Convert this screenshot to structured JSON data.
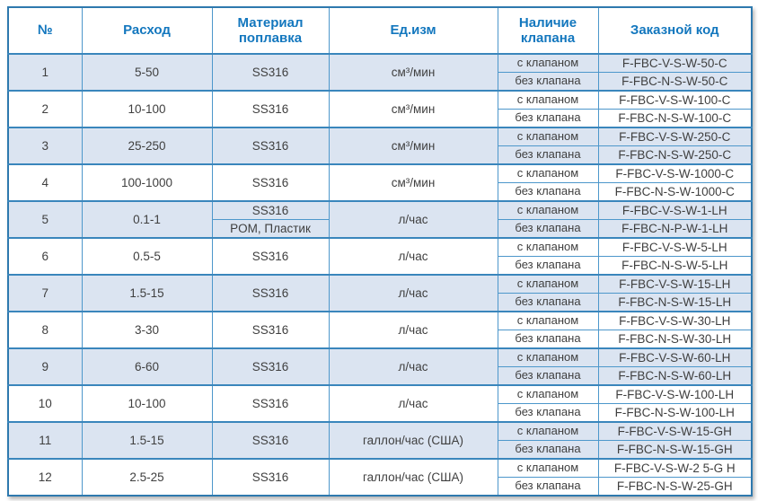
{
  "table": {
    "headers": [
      "№",
      "Расход",
      "Материал поплавка",
      "Ед.изм",
      "Наличие клапана",
      "Заказной код"
    ],
    "valve_labels": [
      "с клапаном",
      "без клапана"
    ],
    "rows": [
      {
        "num": "1",
        "flow": "5-50",
        "material": [
          "SS316"
        ],
        "unit": "см³/мин",
        "codes": [
          "F-FBC-V-S-W-50-C",
          "F-FBC-N-S-W-50-C"
        ]
      },
      {
        "num": "2",
        "flow": "10-100",
        "material": [
          "SS316"
        ],
        "unit": "см³/мин",
        "codes": [
          "F-FBC-V-S-W-100-C",
          "F-FBC-N-S-W-100-C"
        ]
      },
      {
        "num": "3",
        "flow": "25-250",
        "material": [
          "SS316"
        ],
        "unit": "см³/мин",
        "codes": [
          "F-FBC-V-S-W-250-C",
          "F-FBC-N-S-W-250-C"
        ]
      },
      {
        "num": "4",
        "flow": "100-1000",
        "material": [
          "SS316"
        ],
        "unit": "см³/мин",
        "codes": [
          "F-FBC-V-S-W-1000-C",
          "F-FBC-N-S-W-1000-C"
        ]
      },
      {
        "num": "5",
        "flow": "0.1-1",
        "material": [
          "SS316",
          "POM, Пластик"
        ],
        "unit": "л/час",
        "codes": [
          "F-FBC-V-S-W-1-LH",
          "F-FBC-N-P-W-1-LH"
        ]
      },
      {
        "num": "6",
        "flow": "0.5-5",
        "material": [
          "SS316"
        ],
        "unit": "л/час",
        "codes": [
          "F-FBC-V-S-W-5-LH",
          "F-FBC-N-S-W-5-LH"
        ]
      },
      {
        "num": "7",
        "flow": "1.5-15",
        "material": [
          "SS316"
        ],
        "unit": "л/час",
        "codes": [
          "F-FBC-V-S-W-15-LH",
          "F-FBC-N-S-W-15-LH"
        ]
      },
      {
        "num": "8",
        "flow": "3-30",
        "material": [
          "SS316"
        ],
        "unit": "л/час",
        "codes": [
          "F-FBC-V-S-W-30-LH",
          "F-FBC-N-S-W-30-LH"
        ]
      },
      {
        "num": "9",
        "flow": "6-60",
        "material": [
          "SS316"
        ],
        "unit": "л/час",
        "codes": [
          "F-FBC-V-S-W-60-LH",
          "F-FBC-N-S-W-60-LH"
        ]
      },
      {
        "num": "10",
        "flow": "10-100",
        "material": [
          "SS316"
        ],
        "unit": "л/час",
        "codes": [
          "F-FBC-V-S-W-100-LH",
          "F-FBC-N-S-W-100-LH"
        ]
      },
      {
        "num": "11",
        "flow": "1.5-15",
        "material": [
          "SS316"
        ],
        "unit": "галлон/час (США)",
        "codes": [
          "F-FBC-V-S-W-15-GH",
          "F-FBC-N-S-W-15-GH"
        ]
      },
      {
        "num": "12",
        "flow": "2.5-25",
        "material": [
          "SS316"
        ],
        "unit": "галлон/час (США)",
        "codes": [
          "F-FBC-V-S-W-2 5-G H",
          "F-FBC-N-S-W-25-GH"
        ]
      }
    ]
  },
  "colors": {
    "header_text": "#1377be",
    "border": "#4d97cb",
    "group_border": "#3a86bc",
    "shade": "#dbe4f1",
    "text": "#3f3f3f"
  }
}
